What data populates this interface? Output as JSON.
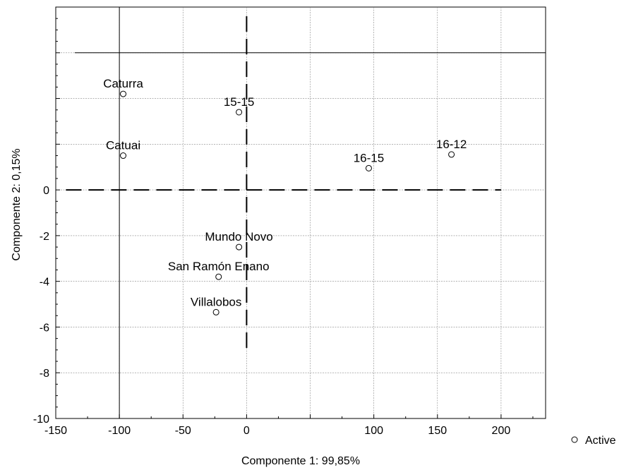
{
  "chart_data": {
    "type": "scatter",
    "xlabel": "Componente 1: 99,85%",
    "ylabel": "Componente 2: 0,15%",
    "xlim": [
      -150,
      235
    ],
    "ylim": [
      -10,
      8
    ],
    "x_ticks": [
      -150,
      -100,
      -50,
      0,
      100,
      150,
      200
    ],
    "x_tick_labels": [
      "-150",
      "-100",
      "-50",
      "0",
      "100",
      "150",
      "200"
    ],
    "x_grid": [
      -100,
      -50,
      0,
      50,
      100,
      150,
      200
    ],
    "y_ticks": [
      -10,
      -8,
      -6,
      -4,
      -2,
      0
    ],
    "y_tick_labels": [
      "-10",
      "-8",
      "-6",
      "-4",
      "-2",
      "0"
    ],
    "y_grid": [
      -8,
      -6,
      -4,
      -2,
      0,
      2,
      4,
      6
    ],
    "grid": true,
    "legend": {
      "label": "Active",
      "placement": "bottom-right outside"
    },
    "points": [
      {
        "label": "Caturra",
        "x": -97,
        "y": 4.2
      },
      {
        "label": "Catuai",
        "x": -97,
        "y": 1.5
      },
      {
        "label": "15-15",
        "x": -6,
        "y": 3.4
      },
      {
        "label": "16-15",
        "x": 96,
        "y": 0.95
      },
      {
        "label": "16-12",
        "x": 161,
        "y": 1.55
      },
      {
        "label": "Mundo Novo",
        "x": -6,
        "y": -2.5
      },
      {
        "label": "San Ramón Enano",
        "x": -22,
        "y": -3.8
      },
      {
        "label": "Villalobos",
        "x": -24,
        "y": -5.35
      }
    ]
  }
}
